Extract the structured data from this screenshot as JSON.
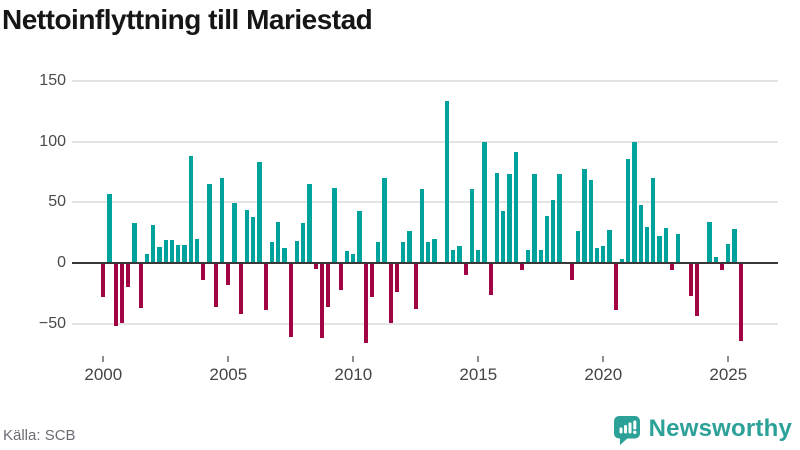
{
  "title": "Nettoinflyttning till Mariestad",
  "source": "Källa: SCB",
  "brand": {
    "name": "Newsworthy"
  },
  "colors": {
    "positive": "#00a39b",
    "negative": "#a00443",
    "grid": "#e4e4e4",
    "zero_line": "#383838",
    "brand_teal": "#2ba198",
    "title_text": "#161616",
    "axis_text": "#4a4a4a",
    "source_text": "#6b6b74"
  },
  "chart_data": {
    "type": "bar",
    "title": "Nettoinflyttning till Mariestad",
    "x_start": "2000 Q1",
    "frequency": "quarterly",
    "values": [
      -28,
      57,
      -52,
      -49,
      -20,
      33,
      -37,
      7,
      31,
      13,
      19,
      19,
      15,
      15,
      88,
      20,
      -14,
      65,
      -36,
      70,
      -18,
      49,
      -42,
      44,
      38,
      83,
      -39,
      17,
      34,
      12,
      -61,
      18,
      33,
      65,
      -5,
      -62,
      -36,
      62,
      -22,
      10,
      7,
      43,
      -66,
      -28,
      17,
      70,
      -49,
      -24,
      17,
      26,
      -38,
      61,
      17,
      20,
      0,
      133,
      11,
      14,
      -10,
      61,
      11,
      100,
      -26,
      74,
      43,
      73,
      91,
      -6,
      11,
      73,
      11,
      39,
      52,
      73,
      0,
      -14,
      26,
      77,
      68,
      12,
      14,
      27,
      -39,
      3,
      86,
      100,
      48,
      30,
      70,
      22,
      29,
      -6,
      24,
      0,
      -27,
      -44,
      0,
      34,
      5,
      -6,
      16,
      28,
      -64
    ],
    "yticks": [
      {
        "value": 150,
        "label": "150"
      },
      {
        "value": 100,
        "label": "100"
      },
      {
        "value": 50,
        "label": "50"
      },
      {
        "value": 0,
        "label": "0"
      },
      {
        "value": -50,
        "label": "−50"
      }
    ],
    "xticks": [
      {
        "label": "2000",
        "index": 0
      },
      {
        "label": "2005",
        "index": 20
      },
      {
        "label": "2010",
        "index": 40
      },
      {
        "label": "2015",
        "index": 60
      },
      {
        "label": "2020",
        "index": 80
      },
      {
        "label": "2025",
        "index": 100
      }
    ],
    "ylim": [
      -75,
      160
    ],
    "grid": true,
    "legend": false
  }
}
